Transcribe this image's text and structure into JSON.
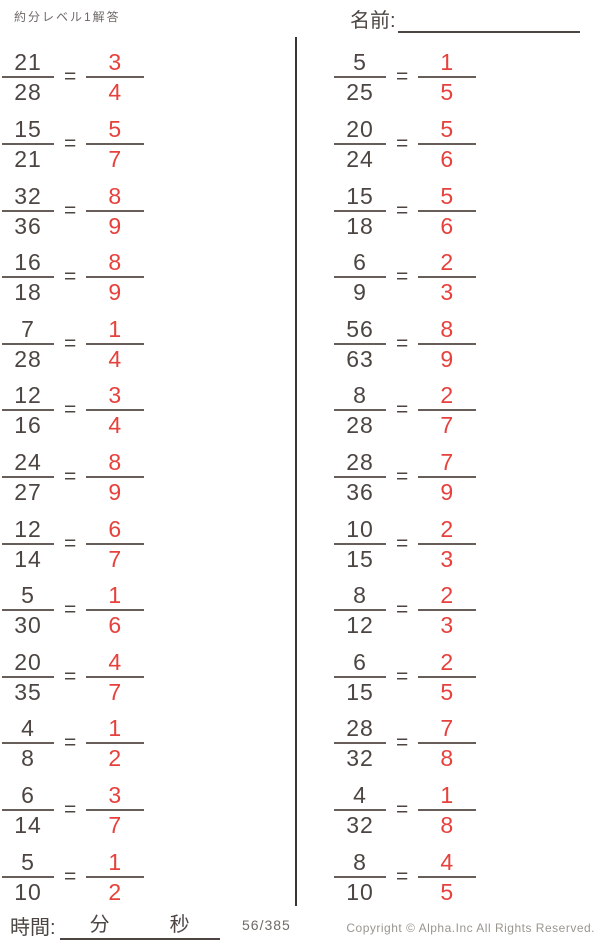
{
  "page": {
    "title": "約分レベル1解答",
    "name_label": "名前:"
  },
  "equals_sign": "=",
  "columns": [
    {
      "problems": [
        {
          "numerator": "21",
          "denominator": "28",
          "answer_numerator": "3",
          "answer_denominator": "4"
        },
        {
          "numerator": "15",
          "denominator": "21",
          "answer_numerator": "5",
          "answer_denominator": "7"
        },
        {
          "numerator": "32",
          "denominator": "36",
          "answer_numerator": "8",
          "answer_denominator": "9"
        },
        {
          "numerator": "16",
          "denominator": "18",
          "answer_numerator": "8",
          "answer_denominator": "9"
        },
        {
          "numerator": "7",
          "denominator": "28",
          "answer_numerator": "1",
          "answer_denominator": "4"
        },
        {
          "numerator": "12",
          "denominator": "16",
          "answer_numerator": "3",
          "answer_denominator": "4"
        },
        {
          "numerator": "24",
          "denominator": "27",
          "answer_numerator": "8",
          "answer_denominator": "9"
        },
        {
          "numerator": "12",
          "denominator": "14",
          "answer_numerator": "6",
          "answer_denominator": "7"
        },
        {
          "numerator": "5",
          "denominator": "30",
          "answer_numerator": "1",
          "answer_denominator": "6"
        },
        {
          "numerator": "20",
          "denominator": "35",
          "answer_numerator": "4",
          "answer_denominator": "7"
        },
        {
          "numerator": "4",
          "denominator": "8",
          "answer_numerator": "1",
          "answer_denominator": "2"
        },
        {
          "numerator": "6",
          "denominator": "14",
          "answer_numerator": "3",
          "answer_denominator": "7"
        },
        {
          "numerator": "5",
          "denominator": "10",
          "answer_numerator": "1",
          "answer_denominator": "2"
        }
      ]
    },
    {
      "problems": [
        {
          "numerator": "5",
          "denominator": "25",
          "answer_numerator": "1",
          "answer_denominator": "5"
        },
        {
          "numerator": "20",
          "denominator": "24",
          "answer_numerator": "5",
          "answer_denominator": "6"
        },
        {
          "numerator": "15",
          "denominator": "18",
          "answer_numerator": "5",
          "answer_denominator": "6"
        },
        {
          "numerator": "6",
          "denominator": "9",
          "answer_numerator": "2",
          "answer_denominator": "3"
        },
        {
          "numerator": "56",
          "denominator": "63",
          "answer_numerator": "8",
          "answer_denominator": "9"
        },
        {
          "numerator": "8",
          "denominator": "28",
          "answer_numerator": "2",
          "answer_denominator": "7"
        },
        {
          "numerator": "28",
          "denominator": "36",
          "answer_numerator": "7",
          "answer_denominator": "9"
        },
        {
          "numerator": "10",
          "denominator": "15",
          "answer_numerator": "2",
          "answer_denominator": "3"
        },
        {
          "numerator": "8",
          "denominator": "12",
          "answer_numerator": "2",
          "answer_denominator": "3"
        },
        {
          "numerator": "6",
          "denominator": "15",
          "answer_numerator": "2",
          "answer_denominator": "5"
        },
        {
          "numerator": "28",
          "denominator": "32",
          "answer_numerator": "7",
          "answer_denominator": "8"
        },
        {
          "numerator": "4",
          "denominator": "32",
          "answer_numerator": "1",
          "answer_denominator": "8"
        },
        {
          "numerator": "8",
          "denominator": "10",
          "answer_numerator": "4",
          "answer_denominator": "5"
        }
      ]
    }
  ],
  "footer": {
    "time_label": "時間:",
    "minutes_label": "分",
    "seconds_label": "秒",
    "page_number": "56/385",
    "copyright": "Copyright ©  Alpha.Inc All Rights Reserved."
  },
  "colors": {
    "ink": "#4c4542",
    "fraction_bar": "#675e5a",
    "answer_red": "#e6413c",
    "muted_gray": "#9b958f",
    "divider": "#3a3330"
  }
}
